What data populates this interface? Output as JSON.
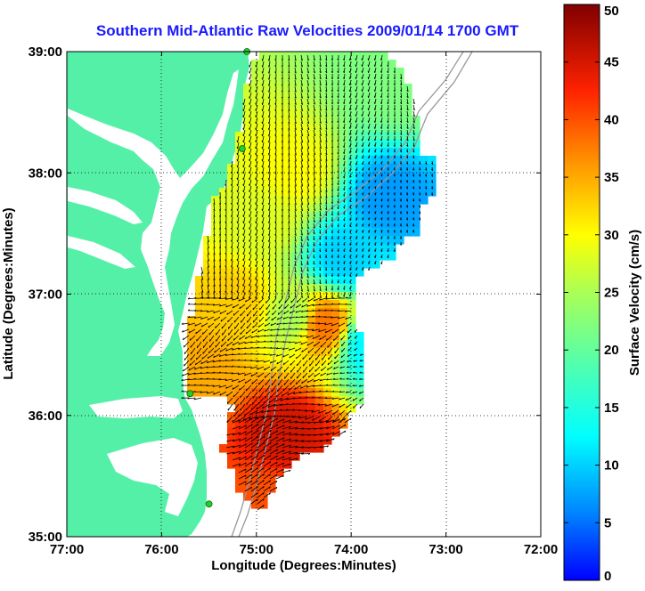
{
  "title": "Southern Mid-Atlantic Raw Velocities 2009/01/14 1700 GMT",
  "x_axis": {
    "label": "Longitude (Degrees:Minutes)",
    "ticks": [
      "77:00",
      "76:00",
      "75:00",
      "74:00",
      "73:00",
      "72:00"
    ],
    "range": [
      -77,
      -72
    ]
  },
  "y_axis": {
    "label": "Latitude (Degrees:Minutes)",
    "ticks": [
      "39:00",
      "38:00",
      "37:00",
      "36:00",
      "35:00"
    ],
    "range": [
      35,
      39
    ]
  },
  "colorbar": {
    "label": "Surface Velocity (cm/s)",
    "ticks": [
      "50",
      "45",
      "40",
      "35",
      "30",
      "25",
      "20",
      "15",
      "10",
      "5",
      "0"
    ],
    "range": [
      0,
      50
    ]
  },
  "colors": {
    "land": "#55f0a8",
    "title": "#1a1aff"
  },
  "chart_data": {
    "type": "heatmap",
    "variable": "surface current speed (cm/s)",
    "speed_regions": [
      {
        "lon": -74.9,
        "lat": 37.6,
        "speed": 28
      },
      {
        "lon": -74.6,
        "lat": 38.0,
        "speed": 30
      },
      {
        "lon": -75.2,
        "lat": 36.9,
        "speed": 33
      },
      {
        "lon": -75.6,
        "lat": 36.4,
        "speed": 35
      },
      {
        "lon": -74.6,
        "lat": 36.8,
        "speed": 25
      },
      {
        "lon": -73.6,
        "lat": 37.8,
        "speed": 7
      },
      {
        "lon": -74.1,
        "lat": 37.3,
        "speed": 10
      },
      {
        "lon": -73.8,
        "lat": 36.6,
        "speed": 12
      },
      {
        "lon": -74.3,
        "lat": 36.75,
        "speed": 38
      },
      {
        "lon": -74.7,
        "lat": 35.85,
        "speed": 45
      },
      {
        "lon": -74.9,
        "lat": 35.3,
        "speed": 40
      },
      {
        "lon": -73.5,
        "lat": 38.7,
        "speed": 22
      }
    ],
    "station_markers": [
      {
        "lon": -75.1,
        "lat": 39.0
      },
      {
        "lon": -75.15,
        "lat": 38.2
      },
      {
        "lon": -75.7,
        "lat": 36.18
      },
      {
        "lon": -75.5,
        "lat": 35.27
      }
    ]
  }
}
